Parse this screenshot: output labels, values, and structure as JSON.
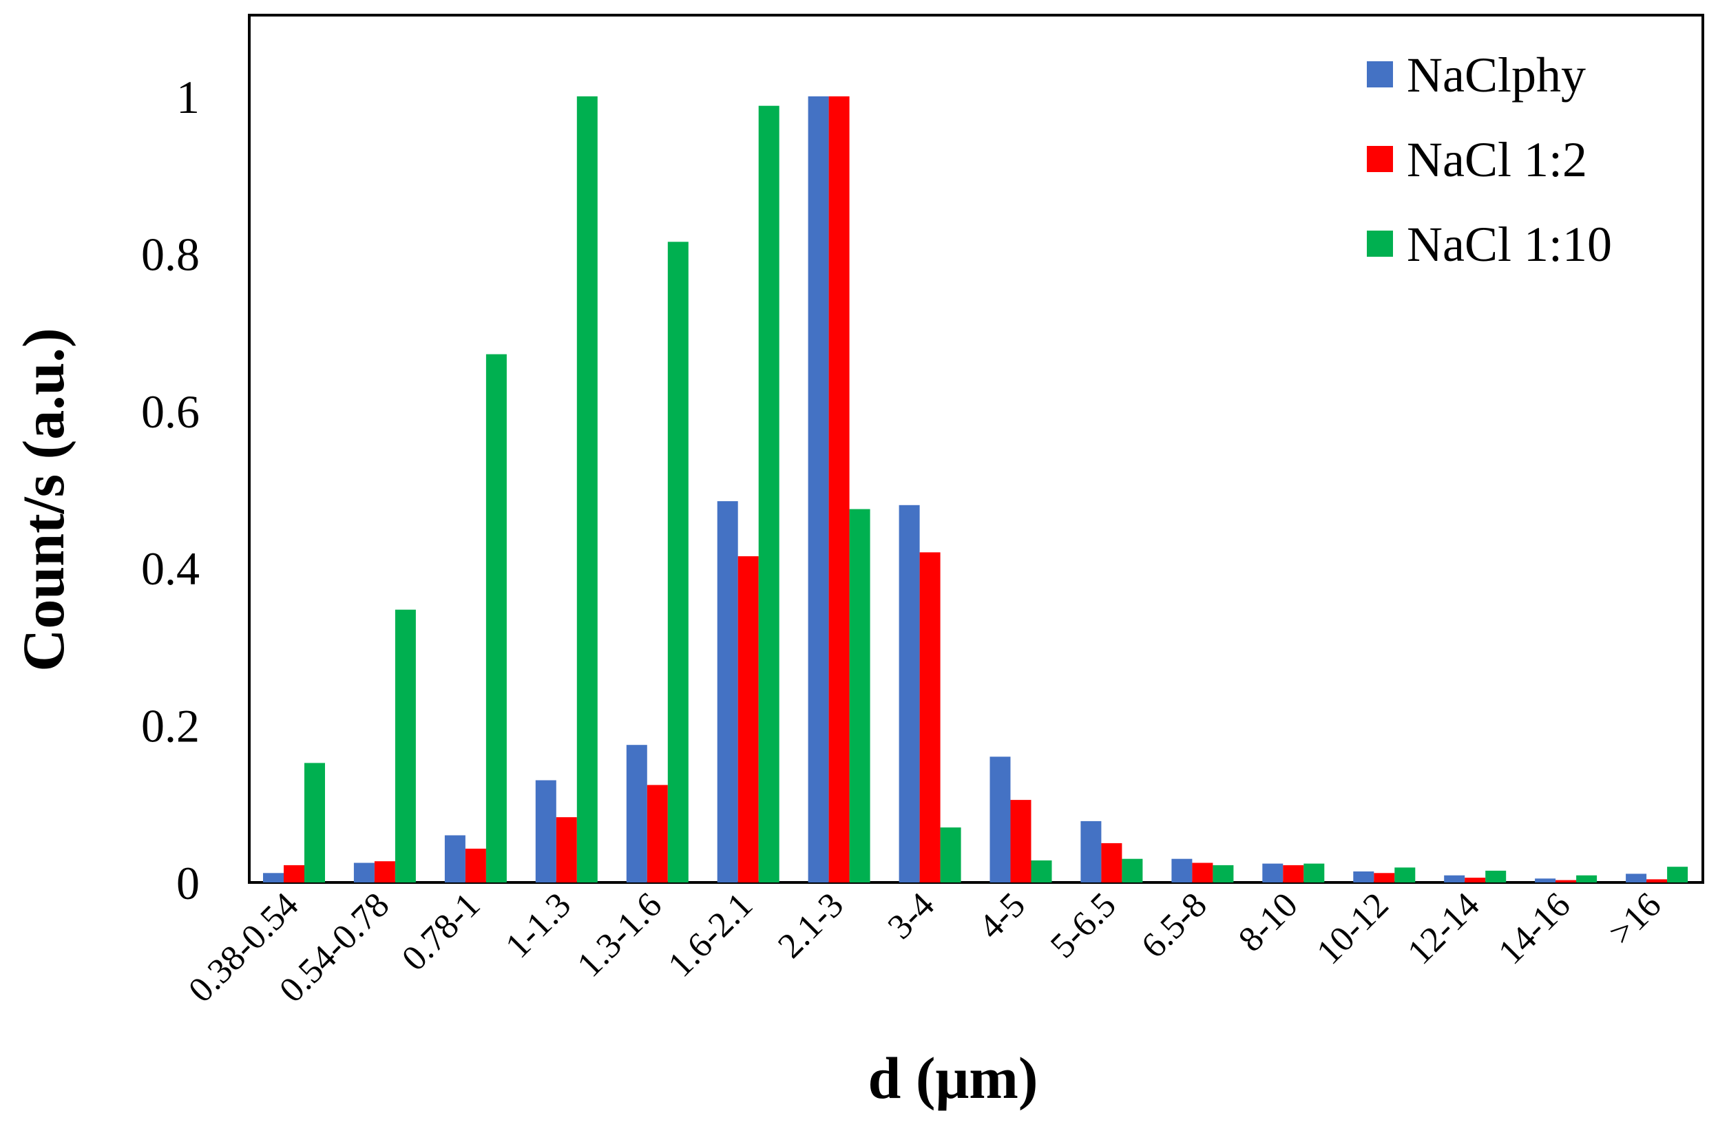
{
  "chart_data": {
    "type": "bar",
    "title": "",
    "xlabel": "d (μm)",
    "ylabel": "Count/s (a.u.)",
    "ylim": [
      0,
      1.1
    ],
    "yticks": [
      0,
      0.2,
      0.4,
      0.6,
      0.8,
      1
    ],
    "ytick_labels": [
      "0",
      "0.2",
      "0.4",
      "0.6",
      "0.8",
      "1"
    ],
    "grid": false,
    "legend_position": "top-right",
    "categories": [
      "0.38-0.54",
      "0.54-0.78",
      "0.78-1",
      "1-1.3",
      "1.3-1.6",
      "1.6-2.1",
      "2.1-3",
      "3-4",
      "4-5",
      "5-6.5",
      "6.5-8",
      "8-10",
      "10-12",
      "12-14",
      "14-16",
      ">16"
    ],
    "series": [
      {
        "name": "NaClphy",
        "color": "#4472C4",
        "values": [
          0.012,
          0.025,
          0.06,
          0.13,
          0.175,
          0.485,
          1.0,
          0.48,
          0.16,
          0.078,
          0.03,
          0.024,
          0.014,
          0.009,
          0.005,
          0.011
        ]
      },
      {
        "name": "NaCl 1:2",
        "color": "#FF0000",
        "values": [
          0.022,
          0.027,
          0.043,
          0.083,
          0.124,
          0.415,
          1.0,
          0.42,
          0.105,
          0.05,
          0.025,
          0.022,
          0.012,
          0.006,
          0.003,
          0.004
        ]
      },
      {
        "name": "NaCl 1:10",
        "color": "#00B050",
        "values": [
          0.152,
          0.347,
          0.672,
          1.0,
          0.815,
          0.988,
          0.475,
          0.07,
          0.028,
          0.03,
          0.022,
          0.024,
          0.019,
          0.015,
          0.009,
          0.02
        ]
      }
    ]
  }
}
